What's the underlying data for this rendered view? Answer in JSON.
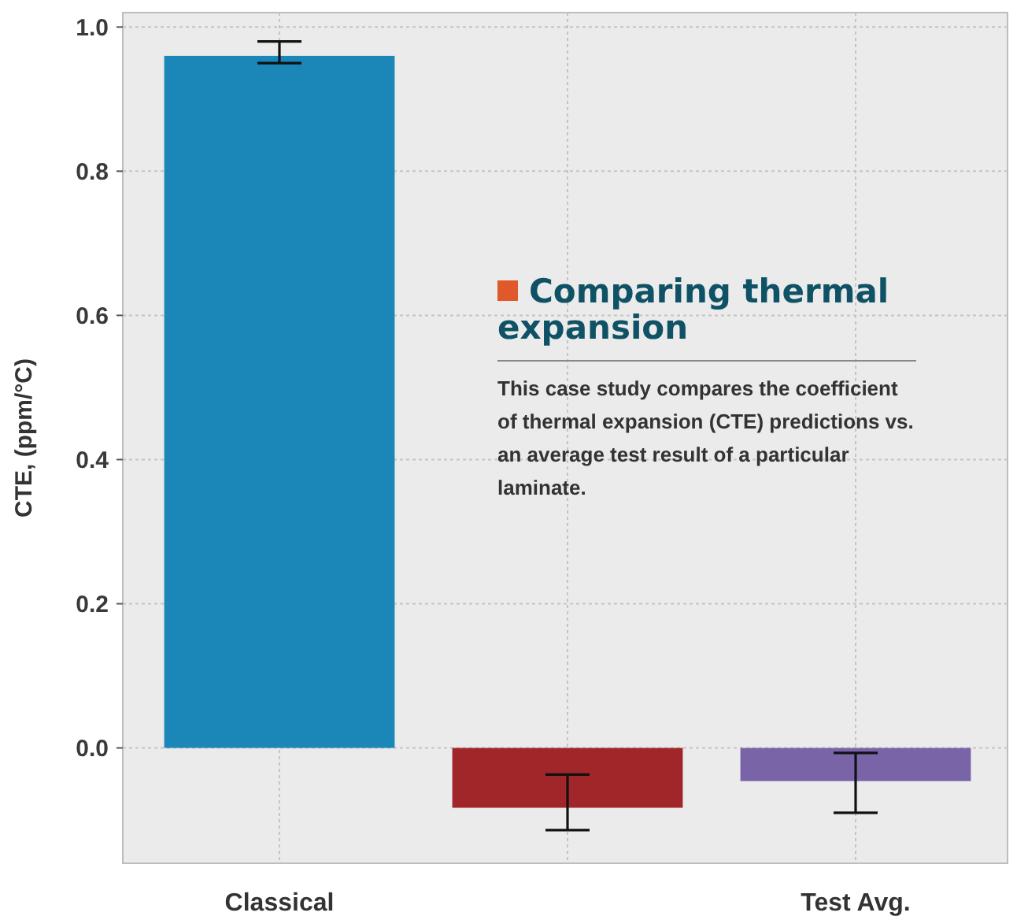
{
  "chart_data": {
    "type": "bar",
    "ylabel": "CTE, (ppm/°C)",
    "categories": [
      "Classical",
      null,
      "Test Avg."
    ],
    "values": [
      0.96,
      -0.083,
      -0.046
    ],
    "colors": [
      "#1a87b8",
      "#a0262a",
      "#7a64a8"
    ],
    "errors": [
      [
        0.95,
        0.98
      ],
      [
        -0.114,
        -0.037
      ],
      [
        -0.09,
        -0.007
      ]
    ],
    "ylim": [
      -0.16,
      1.02
    ],
    "yticks": [
      {
        "value": 0,
        "label": "0.0"
      },
      0.2,
      0.4,
      0.6,
      0.8,
      {
        "value": 1,
        "label": "1.0"
      }
    ],
    "grid": true,
    "annotations": [
      "Comparing thermal expansion",
      "This case study compares the coefficient of thermal expansion (CTE) predictions vs. an average test result of a particular laminate."
    ]
  }
}
